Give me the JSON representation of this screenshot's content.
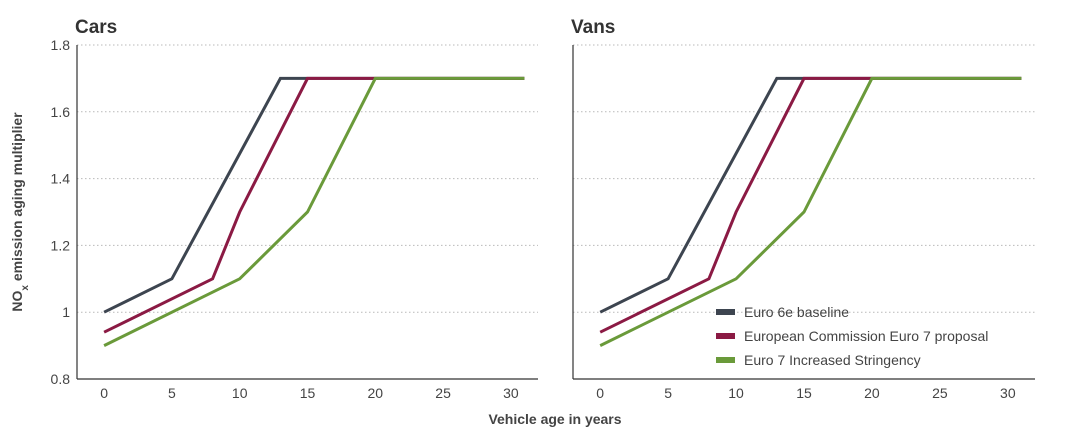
{
  "chart_data": {
    "type": "line",
    "ylabel_main": "NO",
    "ylabel_sub": "x",
    "ylabel_rest": " emission aging multiplier",
    "xlabel": "Vehicle age in years",
    "ylim": [
      0.8,
      1.8
    ],
    "xlim": [
      -2,
      32
    ],
    "y_ticks": [
      0.8,
      1,
      1.2,
      1.4,
      1.6,
      1.8
    ],
    "y_tick_labels": [
      "0.8",
      "1",
      "1.2",
      "1.4",
      "1.6",
      "1.8"
    ],
    "x_ticks": [
      0,
      5,
      10,
      15,
      20,
      25,
      30
    ],
    "x_tick_labels": [
      "0",
      "5",
      "10",
      "15",
      "20",
      "25",
      "30"
    ],
    "legend_position": "bottom-right",
    "panels": [
      {
        "title": "Cars",
        "series": [
          {
            "name": "Euro 6e baseline",
            "color": "#3d4550",
            "x": [
              0,
              5,
              13,
              31
            ],
            "y": [
              1.0,
              1.1,
              1.7,
              1.7
            ]
          },
          {
            "name": "European Commission Euro 7 proposal",
            "color": "#8b1a44",
            "x": [
              0,
              8,
              10,
              15,
              31
            ],
            "y": [
              0.94,
              1.1,
              1.3,
              1.7,
              1.7
            ]
          },
          {
            "name": "Euro 7 Increased Stringency",
            "color": "#6a9a3a",
            "x": [
              0,
              10,
              15,
              20,
              31
            ],
            "y": [
              0.9,
              1.1,
              1.3,
              1.7,
              1.7
            ]
          }
        ]
      },
      {
        "title": "Vans",
        "series": [
          {
            "name": "Euro 6e baseline",
            "color": "#3d4550",
            "x": [
              0,
              5,
              13,
              31
            ],
            "y": [
              1.0,
              1.1,
              1.7,
              1.7
            ]
          },
          {
            "name": "European Commission Euro 7 proposal",
            "color": "#8b1a44",
            "x": [
              0,
              8,
              10,
              15,
              31
            ],
            "y": [
              0.94,
              1.1,
              1.3,
              1.7,
              1.7
            ]
          },
          {
            "name": "Euro 7 Increased Stringency",
            "color": "#6a9a3a",
            "x": [
              0,
              10,
              15,
              20,
              31
            ],
            "y": [
              0.9,
              1.1,
              1.3,
              1.7,
              1.7
            ]
          }
        ]
      }
    ],
    "legend": [
      {
        "label": "Euro 6e baseline",
        "color": "#3d4550"
      },
      {
        "label": "European Commission Euro 7 proposal",
        "color": "#8b1a44"
      },
      {
        "label": "Euro 7 Increased Stringency",
        "color": "#6a9a3a"
      }
    ]
  }
}
